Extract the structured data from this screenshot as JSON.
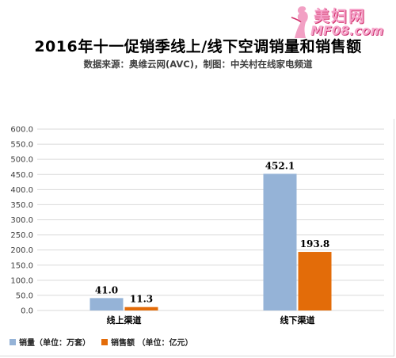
{
  "watermark": {
    "line1": "美妇网",
    "line2": "MF08.com"
  },
  "colors": {
    "series1": "#95b3d7",
    "series2": "#e36c09",
    "grid": "#d9d9d9",
    "axis_text": "#404040"
  },
  "chart_data": {
    "type": "bar",
    "title": "2016年十一促销季线上/线下空调销量和销售额",
    "subtitle": "数据来源：奥维云网(AVC)，制图：中关村在线家电频道",
    "categories": [
      "线上渠道",
      "线下渠道"
    ],
    "series": [
      {
        "name": "销量（单位：万套）",
        "values": [
          41.0,
          452.1
        ],
        "labels": [
          "41.0",
          "452.1"
        ],
        "color": "#95b3d7"
      },
      {
        "name": "销售额 （单位：亿元）",
        "values": [
          11.3,
          193.8
        ],
        "labels": [
          "11.3",
          "193.8"
        ],
        "color": "#e36c09"
      }
    ],
    "ylim": [
      0,
      600
    ],
    "yticks": [
      "0.0",
      "50.0",
      "100.0",
      "150.0",
      "200.0",
      "250.0",
      "300.0",
      "350.0",
      "400.0",
      "450.0",
      "500.0",
      "550.0",
      "600.0"
    ],
    "grid": true,
    "legend_position": "bottom-left"
  }
}
